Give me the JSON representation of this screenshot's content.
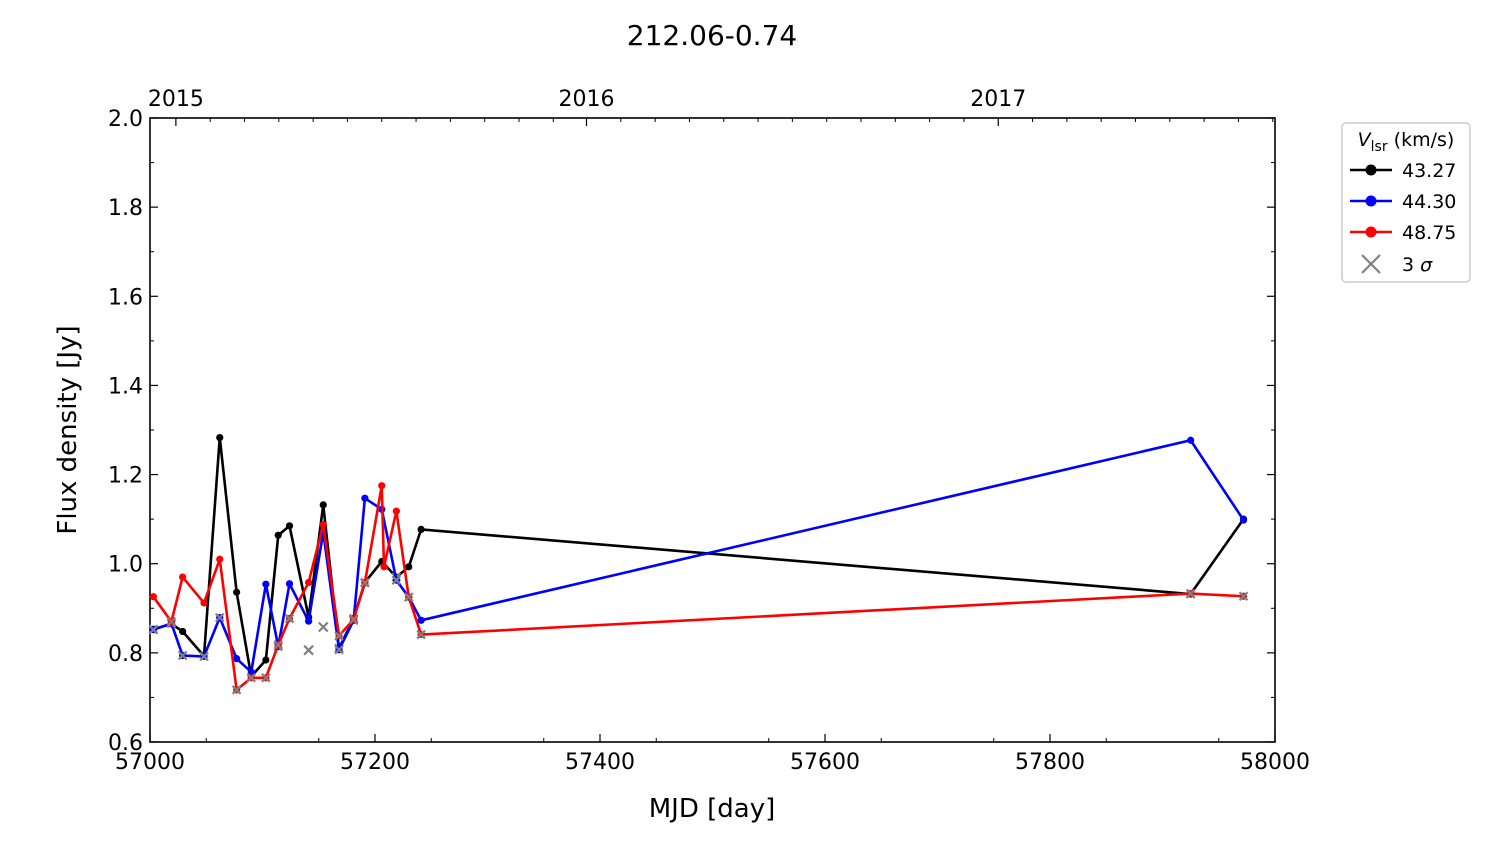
{
  "chart_data": {
    "type": "line",
    "title": "212.06-0.74",
    "xlabel": "MJD [day]",
    "ylabel": "Flux density [Jy]",
    "xlim": [
      57000,
      58000
    ],
    "ylim": [
      0.6,
      2.0
    ],
    "xticks": [
      57000,
      57200,
      57400,
      57600,
      57800,
      58000
    ],
    "yticks": [
      0.6,
      0.8,
      1.0,
      1.2,
      1.4,
      1.6,
      1.8,
      2.0
    ],
    "ytick_labels": [
      "0.6",
      "0.8",
      "1.0",
      "1.2",
      "1.4",
      "1.6",
      "1.8",
      "2.0"
    ],
    "top_axis": {
      "ticks": [
        {
          "label": "2015",
          "x": 57023
        },
        {
          "label": "2016",
          "x": 57388
        },
        {
          "label": "2017",
          "x": 57754
        }
      ]
    },
    "legend": {
      "title_main": "V",
      "title_sub": "lsr",
      "title_unit": " (km/s)",
      "position": "outside-right-top",
      "sigma_label": "3 σ"
    },
    "grid": false,
    "sigma_color": "#808080",
    "series": [
      {
        "name": "43.27",
        "color": "#000000",
        "points": [
          {
            "x": 57003,
            "y": 0.853,
            "s": true
          },
          {
            "x": 57019,
            "y": 0.865,
            "s": false
          },
          {
            "x": 57029,
            "y": 0.848,
            "s": false
          },
          {
            "x": 57048,
            "y": 0.793,
            "s": false
          },
          {
            "x": 57062,
            "y": 1.283,
            "s": false
          },
          {
            "x": 57077,
            "y": 0.936,
            "s": false
          },
          {
            "x": 57090,
            "y": 0.747,
            "s": false
          },
          {
            "x": 57103,
            "y": 0.784,
            "s": false
          },
          {
            "x": 57114,
            "y": 1.064,
            "s": false
          },
          {
            "x": 57124,
            "y": 1.085,
            "s": false
          },
          {
            "x": 57141,
            "y": 0.88,
            "s": false
          },
          {
            "x": 57154,
            "y": 1.132,
            "s": false
          },
          {
            "x": 57168,
            "y": 0.81,
            "s": true
          },
          {
            "x": 57181,
            "y": 0.877,
            "s": true
          },
          {
            "x": 57191,
            "y": 0.958,
            "s": true
          },
          {
            "x": 57206,
            "y": 1.005,
            "s": false
          },
          {
            "x": 57219,
            "y": 0.97,
            "s": true
          },
          {
            "x": 57230,
            "y": 0.993,
            "s": false
          },
          {
            "x": 57241,
            "y": 1.077,
            "s": false
          },
          {
            "x": 57925,
            "y": 0.932,
            "s": true
          },
          {
            "x": 57972,
            "y": 1.1,
            "s": false
          }
        ]
      },
      {
        "name": "44.30",
        "color": "#0000ff",
        "points": [
          {
            "x": 57003,
            "y": 0.852,
            "s": true
          },
          {
            "x": 57019,
            "y": 0.866,
            "s": true
          },
          {
            "x": 57029,
            "y": 0.794,
            "s": true
          },
          {
            "x": 57048,
            "y": 0.792,
            "s": true
          },
          {
            "x": 57062,
            "y": 0.879,
            "s": true
          },
          {
            "x": 57077,
            "y": 0.787,
            "s": false
          },
          {
            "x": 57090,
            "y": 0.757,
            "s": false
          },
          {
            "x": 57103,
            "y": 0.954,
            "s": false
          },
          {
            "x": 57114,
            "y": 0.814,
            "s": true
          },
          {
            "x": 57124,
            "y": 0.955,
            "s": false
          },
          {
            "x": 57141,
            "y": 0.871,
            "s": false
          },
          {
            "x": 57154,
            "y": 1.071,
            "s": false
          },
          {
            "x": 57168,
            "y": 0.807,
            "s": true
          },
          {
            "x": 57181,
            "y": 0.873,
            "s": true
          },
          {
            "x": 57191,
            "y": 1.147,
            "s": false
          },
          {
            "x": 57206,
            "y": 1.122,
            "s": false
          },
          {
            "x": 57219,
            "y": 0.963,
            "s": true
          },
          {
            "x": 57230,
            "y": 0.925,
            "s": true
          },
          {
            "x": 57241,
            "y": 0.873,
            "s": false
          },
          {
            "x": 57925,
            "y": 1.277,
            "s": false
          },
          {
            "x": 57972,
            "y": 1.098,
            "s": false
          }
        ]
      },
      {
        "name": "48.75",
        "color": "#ff0000",
        "points": [
          {
            "x": 57003,
            "y": 0.926,
            "s": false
          },
          {
            "x": 57019,
            "y": 0.87,
            "s": true
          },
          {
            "x": 57029,
            "y": 0.97,
            "s": false
          },
          {
            "x": 57048,
            "y": 0.912,
            "s": false
          },
          {
            "x": 57062,
            "y": 1.01,
            "s": false
          },
          {
            "x": 57077,
            "y": 0.717,
            "s": true
          },
          {
            "x": 57090,
            "y": 0.744,
            "s": true
          },
          {
            "x": 57103,
            "y": 0.744,
            "s": true
          },
          {
            "x": 57114,
            "y": 0.818,
            "s": true
          },
          {
            "x": 57124,
            "y": 0.877,
            "s": true
          },
          {
            "x": 57141,
            "y": 0.958,
            "s": false
          },
          {
            "x": 57154,
            "y": 1.088,
            "s": false
          },
          {
            "x": 57168,
            "y": 0.838,
            "s": true
          },
          {
            "x": 57181,
            "y": 0.875,
            "s": true
          },
          {
            "x": 57191,
            "y": 0.957,
            "s": true
          },
          {
            "x": 57206,
            "y": 1.175,
            "s": false
          },
          {
            "x": 57208,
            "y": 0.993,
            "s": false
          },
          {
            "x": 57219,
            "y": 1.118,
            "s": false
          },
          {
            "x": 57230,
            "y": 0.925,
            "s": true
          },
          {
            "x": 57241,
            "y": 0.841,
            "s": true
          },
          {
            "x": 57925,
            "y": 0.933,
            "s": true
          },
          {
            "x": 57972,
            "y": 0.927,
            "s": true
          }
        ]
      }
    ],
    "extra_sigma_points": [
      {
        "x": 57141,
        "y": 0.806
      },
      {
        "x": 57154,
        "y": 0.858
      }
    ]
  }
}
